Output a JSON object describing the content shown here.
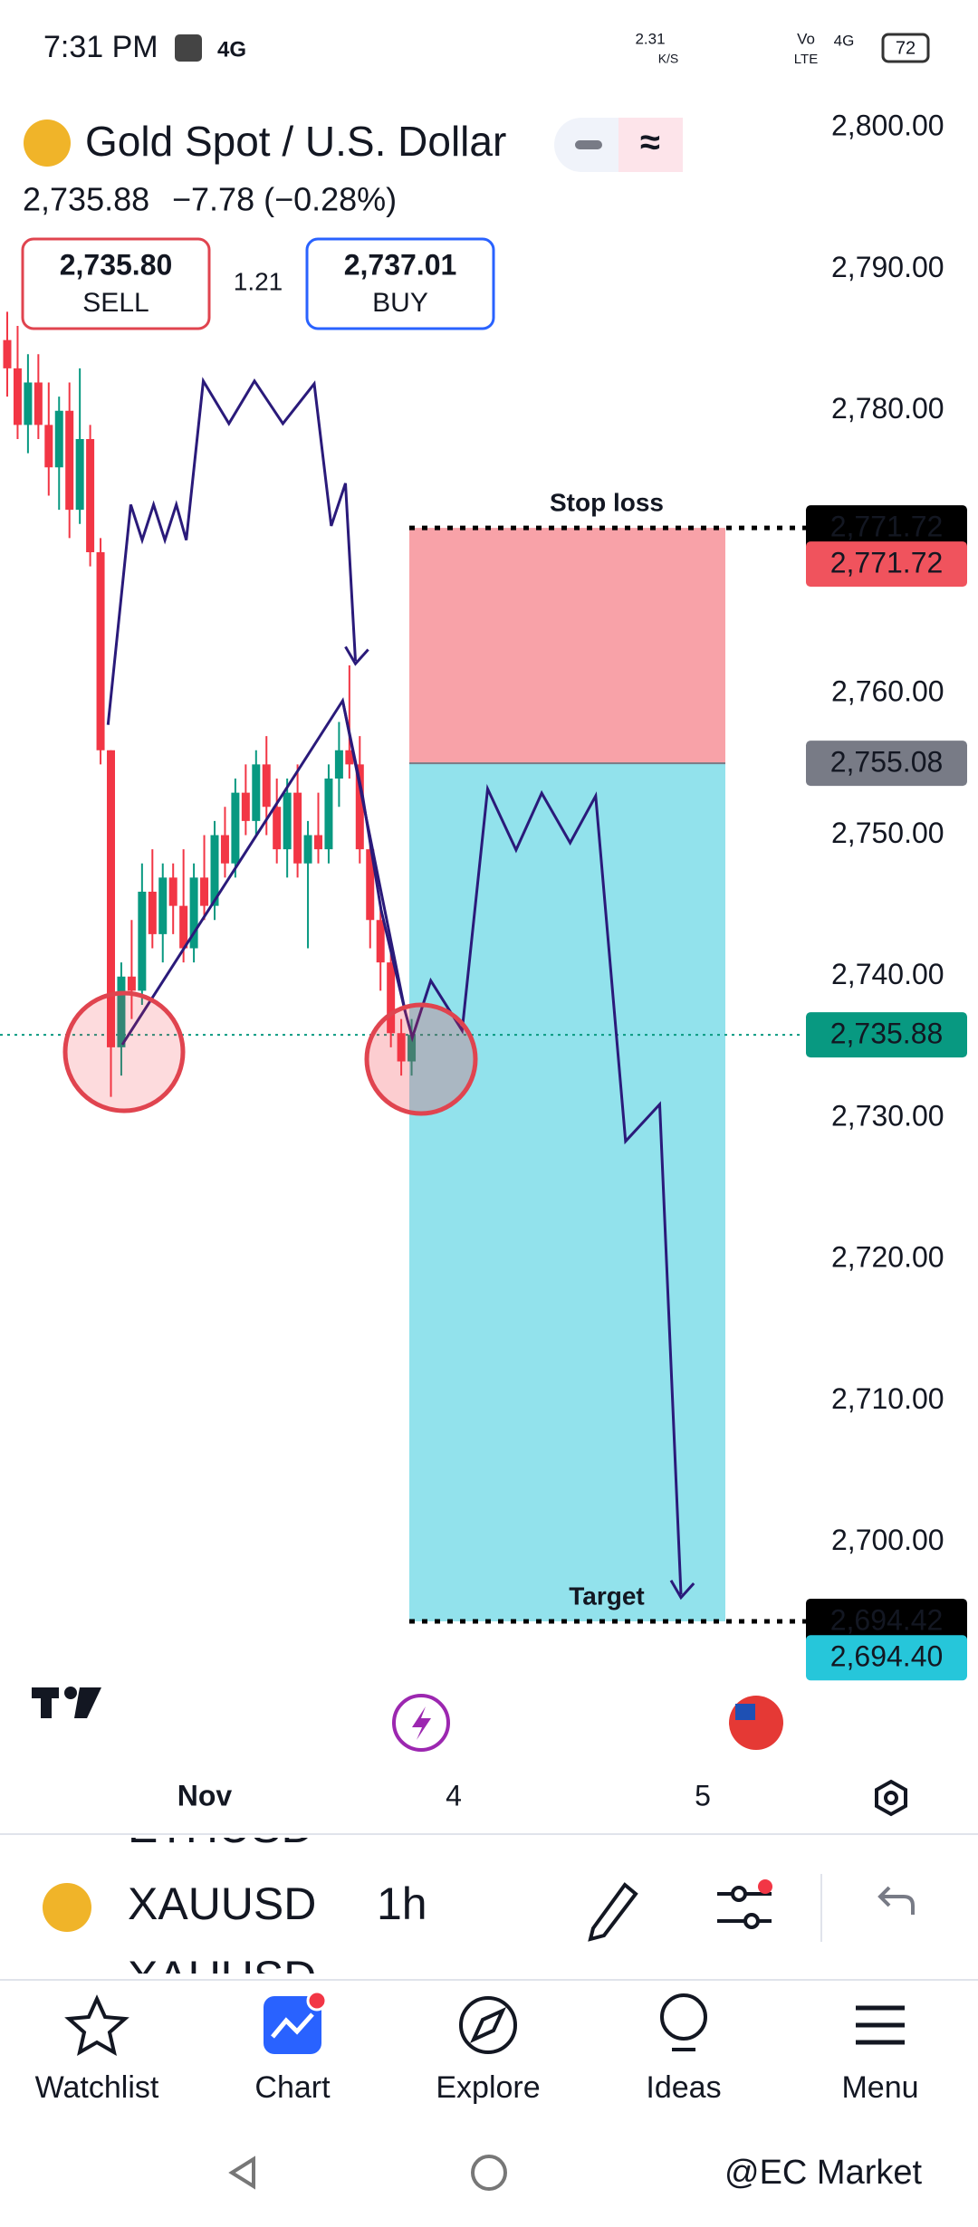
{
  "status_bar": {
    "time": "7:31 PM",
    "network": "4G",
    "speed": "2.31",
    "speed_unit": "K/S",
    "volte_top": "Vo",
    "volte_bottom": "LTE",
    "signal": "4G",
    "battery": "72"
  },
  "header": {
    "title": "Gold Spot / U.S. Dollar",
    "price": "2,735.88",
    "change": "−7.78 (−0.28%)",
    "sell_price": "2,735.80",
    "sell_label": "SELL",
    "spread": "1.21",
    "buy_price": "2,737.01",
    "buy_label": "BUY"
  },
  "chart_data": {
    "type": "candlestick",
    "open": [
      2785,
      2783,
      2779,
      2782,
      2779,
      2776,
      2780,
      2773,
      2778,
      2770,
      2756,
      2735,
      2740,
      2739,
      2746,
      2743,
      2747,
      2745,
      2742,
      2747,
      2745,
      2750,
      2748,
      2753,
      2751,
      2755,
      2752,
      2749,
      2753,
      2748,
      2750,
      2749,
      2754,
      2756,
      2755,
      2749,
      2744,
      2741,
      2736,
      2734
    ],
    "high": [
      2787,
      2786,
      2784,
      2784,
      2782,
      2781,
      2782,
      2783,
      2779,
      2771,
      2756,
      2741,
      2744,
      2748,
      2749,
      2748,
      2748,
      2749,
      2748,
      2750,
      2751,
      2752,
      2754,
      2755,
      2756,
      2757,
      2754,
      2754,
      2755,
      2751,
      2753,
      2755,
      2758,
      2762,
      2757,
      2750,
      2745,
      2742,
      2737,
      2737
    ],
    "low": [
      2781,
      2778,
      2777,
      2778,
      2774,
      2773,
      2771,
      2772,
      2769,
      2755,
      2731.5,
      2733,
      2737,
      2738,
      2742,
      2741,
      2743,
      2741,
      2741,
      2744,
      2744,
      2747,
      2747,
      2750,
      2750,
      2750,
      2748,
      2747,
      2747,
      2742,
      2748,
      2748,
      2752,
      2754,
      2748,
      2742,
      2739,
      2735,
      2733,
      2733
    ],
    "close": [
      2783,
      2779,
      2782,
      2779,
      2776,
      2780,
      2773,
      2778,
      2770,
      2756,
      2735,
      2740,
      2739,
      2746,
      2743,
      2747,
      2745,
      2742,
      2747,
      2745,
      2750,
      2748,
      2753,
      2751,
      2755,
      2752,
      2749,
      2753,
      2748,
      2750,
      2749,
      2754,
      2756,
      2755,
      2749,
      2744,
      2741,
      2736,
      2734,
      2735.88
    ],
    "up_color": "#089981",
    "down_color": "#f23645",
    "ylim": [
      2690,
      2802
    ],
    "yticks": [
      {
        "value": 2700,
        "label": "2,700.00"
      },
      {
        "value": 2710,
        "label": "2,710.00"
      },
      {
        "value": 2720,
        "label": "2,720.00"
      },
      {
        "value": 2730,
        "label": "2,730.00"
      },
      {
        "value": 2740,
        "label": "2,740.00"
      },
      {
        "value": 2750,
        "label": "2,750.00"
      },
      {
        "value": 2760,
        "label": "2,760.00"
      },
      {
        "value": 2770,
        "label": "2,770.00"
      },
      {
        "value": 2780,
        "label": "2,780.00"
      },
      {
        "value": 2790,
        "label": "2,790.00"
      },
      {
        "value": 2800,
        "label": "2,800.00"
      }
    ],
    "time_labels": [
      "Nov",
      "4",
      "5"
    ],
    "price_labels": [
      {
        "value": 2771.72,
        "label": "2,771.72",
        "color": "#000000"
      },
      {
        "value": 2771.72,
        "label": "2,771.72",
        "color": "#f0535d"
      },
      {
        "value": 2755.08,
        "label": "2,755.08",
        "color": "#787b86"
      },
      {
        "value": 2735.88,
        "label": "2,735.88",
        "color": "#089981"
      },
      {
        "value": 2694.42,
        "label": "2,694.42",
        "color": "#000000"
      },
      {
        "value": 2694.4,
        "label": "2,694.40",
        "color": "#26c6da"
      }
    ],
    "annotations": [
      "Stop loss",
      "Target"
    ]
  },
  "symbol_bar": {
    "above": "ETHUSD",
    "symbol": "XAUUSD",
    "below": "XAUUSD",
    "interval": "1h"
  },
  "nav": [
    "Watchlist",
    "Chart",
    "Explore",
    "Ideas",
    "Menu"
  ],
  "watermark": "@EC Market"
}
